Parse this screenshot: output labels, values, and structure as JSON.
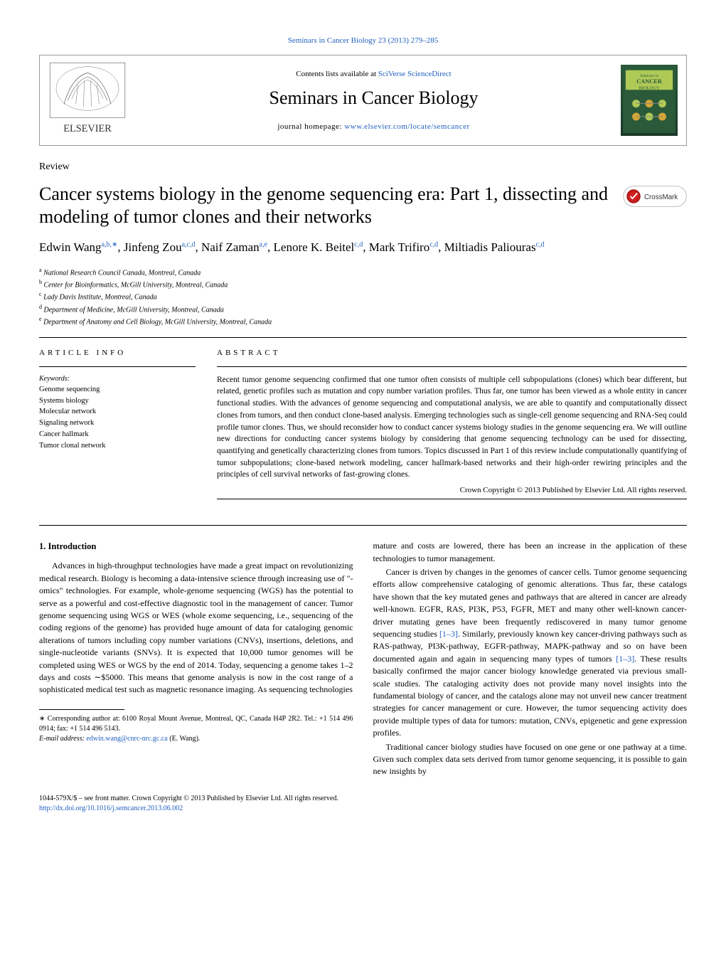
{
  "header": {
    "top_link": "Seminars in Cancer Biology 23 (2013) 279–285",
    "contents_prefix": "Contents lists available at ",
    "contents_link": "SciVerse ScienceDirect",
    "journal_name": "Seminars in Cancer Biology",
    "homepage_prefix": "journal homepage: ",
    "homepage_link": "www.elsevier.com/locate/semcancer",
    "cover_text_top": "Seminars in",
    "cover_text_mid": "CANCER",
    "cover_text_bot": "BIOLOGY"
  },
  "article": {
    "type": "Review",
    "title": "Cancer systems biology in the genome sequencing era: Part 1, dissecting and modeling of tumor clones and their networks",
    "crossmark_label": "CrossMark"
  },
  "authors": {
    "list": [
      {
        "name": "Edwin Wang",
        "sup": "a,b,∗"
      },
      {
        "name": "Jinfeng Zou",
        "sup": "a,c,d"
      },
      {
        "name": "Naif Zaman",
        "sup": "a,e"
      },
      {
        "name": "Lenore K. Beitel",
        "sup": "c,d"
      },
      {
        "name": "Mark Trifiro",
        "sup": "c,d"
      },
      {
        "name": "Miltiadis Paliouras",
        "sup": "c,d"
      }
    ]
  },
  "affiliations": [
    {
      "sup": "a",
      "text": "National Research Council Canada, Montreal, Canada"
    },
    {
      "sup": "b",
      "text": "Center for Bioinformatics, McGill University, Montreal, Canada"
    },
    {
      "sup": "c",
      "text": "Lady Davis Institute, Montreal, Canada"
    },
    {
      "sup": "d",
      "text": "Department of Medicine, McGill University, Montreal, Canada"
    },
    {
      "sup": "e",
      "text": "Department of Anatomy and Cell Biology, McGill University, Montreal, Canada"
    }
  ],
  "info": {
    "heading": "ARTICLE INFO",
    "keywords_label": "Keywords:",
    "keywords": [
      "Genome sequencing",
      "Systems biology",
      "Molecular network",
      "Signaling network",
      "Cancer hallmark",
      "Tumor clonal network"
    ]
  },
  "abstract": {
    "heading": "ABSTRACT",
    "text": "Recent tumor genome sequencing confirmed that one tumor often consists of multiple cell subpopulations (clones) which bear different, but related, genetic profiles such as mutation and copy number variation profiles. Thus far, one tumor has been viewed as a whole entity in cancer functional studies. With the advances of genome sequencing and computational analysis, we are able to quantify and computationally dissect clones from tumors, and then conduct clone-based analysis. Emerging technologies such as single-cell genome sequencing and RNA-Seq could profile tumor clones. Thus, we should reconsider how to conduct cancer systems biology studies in the genome sequencing era. We will outline new directions for conducting cancer systems biology by considering that genome sequencing technology can be used for dissecting, quantifying and genetically characterizing clones from tumors. Topics discussed in Part 1 of this review include computationally quantifying of tumor subpopulations; clone-based network modeling, cancer hallmark-based networks and their high-order rewiring principles and the principles of cell survival networks of fast-growing clones.",
    "copyright": "Crown Copyright © 2013 Published by Elsevier Ltd. All rights reserved."
  },
  "body": {
    "section1_heading": "1.  Introduction",
    "para1": "Advances in high-throughput technologies have made a great impact on revolutionizing medical research. Biology is becoming a data-intensive science through increasing use of \"-omics\" technologies. For example, whole-genome sequencing (WGS) has the potential to serve as a powerful and cost-effective diagnostic tool in the management of cancer. Tumor genome sequencing using WGS or WES (whole exome sequencing, i.e., sequencing of the coding regions of the genome) has provided huge amount of data for cataloging genomic alterations of tumors including copy number variations (CNVs), insertions, deletions, and single-nucleotide variants (SNVs). It is expected that 10,000 tumor genomes will be completed using WES or WGS by the end of 2014. Today, sequencing a genome takes 1–2 days and costs ∼$5000. This means that genome analysis is now in the cost range of a sophisticated medical test such as magnetic resonance imaging. As sequencing technologies",
    "para2": "mature and costs are lowered, there has been an increase in the application of these technologies to tumor management.",
    "para3a": "Cancer is driven by changes in the genomes of cancer cells. Tumor genome sequencing efforts allow comprehensive cataloging of genomic alterations. Thus far, these catalogs have shown that the key mutated genes and pathways that are altered in cancer are already well-known. EGFR, RAS, PI3K, P53, FGFR, MET and many other well-known cancer-driver mutating genes have been frequently rediscovered in many tumor genome sequencing studies ",
    "ref1": "[1–3]",
    "para3b": ". Similarly, previously known key cancer-driving pathways such as RAS-pathway, PI3K-pathway, EGFR-pathway, MAPK-pathway and so on have been documented again and again in sequencing many types of tumors ",
    "ref2": "[1–3]",
    "para3c": ". These results basically confirmed the major cancer biology knowledge generated via previous small-scale studies. The cataloging activity does not provide many novel insights into the fundamental biology of cancer, and the catalogs alone may not unveil new cancer treatment strategies for cancer management or cure. However, the tumor sequencing activity does provide multiple types of data for tumors: mutation, CNVs, epigenetic and gene expression profiles.",
    "para4": "Traditional cancer biology studies have focused on one gene or one pathway at a time. Given such complex data sets derived from tumor genome sequencing, it is possible to gain new insights by"
  },
  "footnote": {
    "corr_prefix": "∗ Corresponding author at: 6100 Royal Mount Avenue, Montreal, QC, Canada H4P 2R2. Tel.: +1 514 496 0914; fax: +1 514 496 5143.",
    "email_label": "E-mail address: ",
    "email": "edwin.wang@cnrc-nrc.gc.ca",
    "email_suffix": " (E. Wang)."
  },
  "footer": {
    "issn": "1044-579X/$ – see front matter. Crown Copyright © 2013 Published by Elsevier Ltd. All rights reserved.",
    "doi": "http://dx.doi.org/10.1016/j.semcancer.2013.06.002"
  },
  "colors": {
    "link": "#2060c0",
    "rule": "#000000",
    "cover_bg": "#2a5a3a"
  }
}
